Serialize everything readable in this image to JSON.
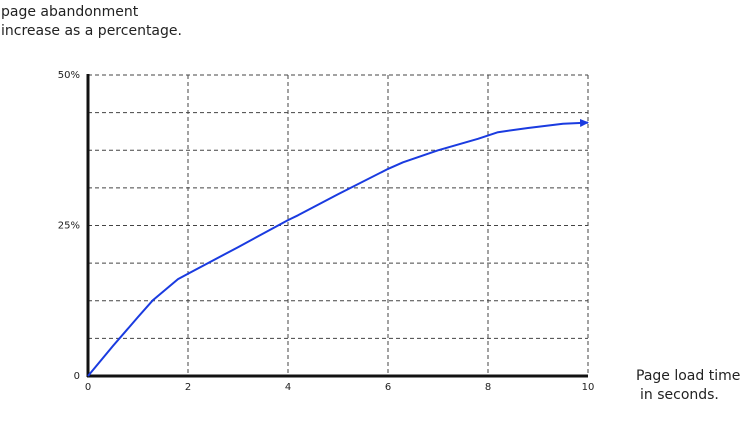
{
  "chart_data": {
    "type": "line",
    "ylabel_lines": [
      "page abandonment",
      "increase as a percentage."
    ],
    "xlabel_lines": [
      "Page load time",
      "in seconds."
    ],
    "x_ticks": [
      "0",
      "2",
      "4",
      "6",
      "8",
      "10"
    ],
    "y_ticks": [
      "0",
      "25%",
      "50%"
    ],
    "xlim": [
      0,
      10
    ],
    "ylim": [
      0,
      50
    ],
    "grid": true,
    "series": [
      {
        "color": "#1a3be0",
        "x": [
          0,
          0.5,
          1.0,
          1.3,
          1.8,
          2.0,
          3.0,
          4.0,
          4.2,
          5.0,
          6.0,
          6.3,
          7.0,
          7.8,
          8.2,
          8.8,
          9.5,
          10.0
        ],
        "y": [
          0,
          5.0,
          9.8,
          12.6,
          16.1,
          17.0,
          21.4,
          25.9,
          26.7,
          30.2,
          34.4,
          35.5,
          37.5,
          39.4,
          40.5,
          41.2,
          41.9,
          42.1
        ]
      }
    ]
  }
}
